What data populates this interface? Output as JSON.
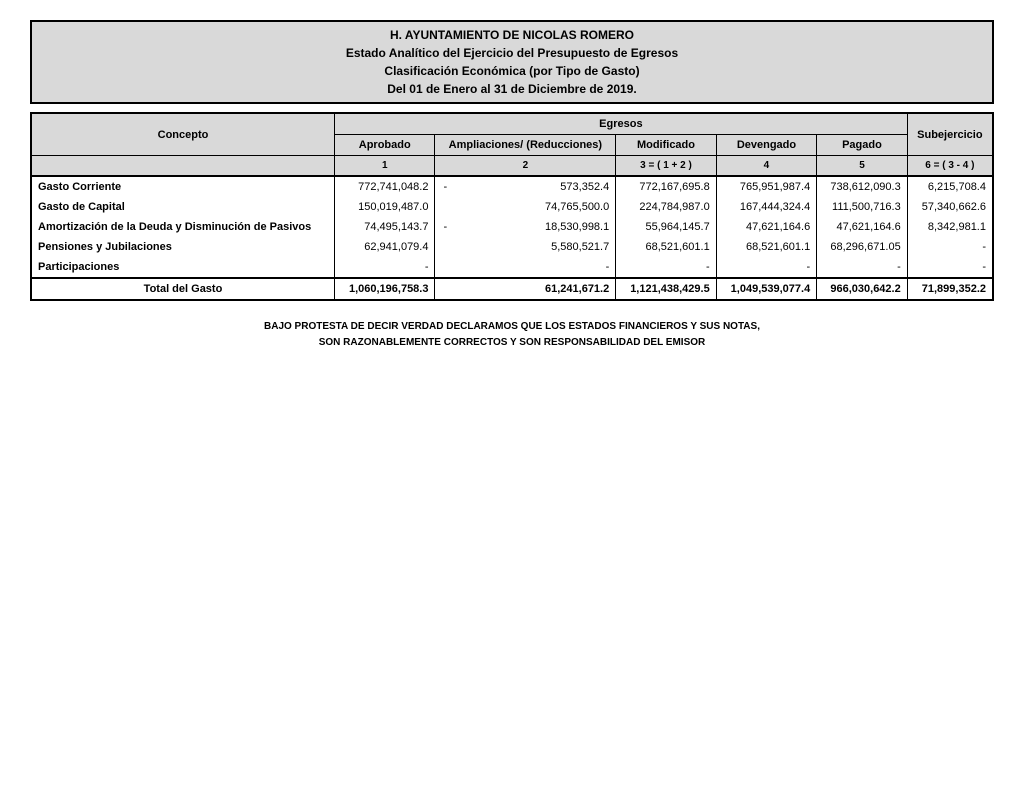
{
  "header": {
    "line1": "H. AYUNTAMIENTO DE NICOLAS ROMERO",
    "line2": "Estado Analítico del Ejercicio del Presupuesto de Egresos",
    "line3": "Clasificación Económica (por Tipo de Gasto)",
    "line4": "Del 01 de Enero al 31 de Diciembre de 2019."
  },
  "columns": {
    "concepto": "Concepto",
    "egresos": "Egresos",
    "aprobado": "Aprobado",
    "ampliaciones": "Ampliaciones/ (Reducciones)",
    "modificado": "Modificado",
    "devengado": "Devengado",
    "pagado": "Pagado",
    "subejercicio": "Subejercicio",
    "f1": "1",
    "f2": "2",
    "f3": "3 = ( 1 + 2 )",
    "f4": "4",
    "f5": "5",
    "f6": "6 = ( 3 - 4 )"
  },
  "rows": [
    {
      "concepto": "Gasto Corriente",
      "aprobado": "772,741,048.2",
      "ampl_neg": true,
      "ampliaciones": "573,352.4",
      "modificado": "772,167,695.8",
      "devengado": "765,951,987.4",
      "pagado": "738,612,090.3",
      "subejercicio": "6,215,708.4"
    },
    {
      "concepto": "Gasto de Capital",
      "aprobado": "150,019,487.0",
      "ampl_neg": false,
      "ampliaciones": "74,765,500.0",
      "modificado": "224,784,987.0",
      "devengado": "167,444,324.4",
      "pagado": "111,500,716.3",
      "subejercicio": "57,340,662.6"
    },
    {
      "concepto": "Amortización de la Deuda y Disminución de Pasivos",
      "aprobado": "74,495,143.7",
      "ampl_neg": true,
      "ampliaciones": "18,530,998.1",
      "modificado": "55,964,145.7",
      "devengado": "47,621,164.6",
      "pagado": "47,621,164.6",
      "subejercicio": "8,342,981.1"
    },
    {
      "concepto": "Pensiones y Jubilaciones",
      "aprobado": "62,941,079.4",
      "ampl_neg": false,
      "ampliaciones": "5,580,521.7",
      "modificado": "68,521,601.1",
      "devengado": "68,521,601.1",
      "pagado": "68,296,671.05",
      "subejercicio": "-"
    },
    {
      "concepto": "Participaciones",
      "aprobado": "-",
      "ampl_neg": false,
      "ampliaciones": "-",
      "modificado": "-",
      "devengado": "-",
      "pagado": "-",
      "subejercicio": "-"
    }
  ],
  "total": {
    "label": "Total del Gasto",
    "aprobado": "1,060,196,758.3",
    "ampliaciones": "61,241,671.2",
    "modificado": "1,121,438,429.5",
    "devengado": "1,049,539,077.4",
    "pagado": "966,030,642.2",
    "subejercicio": "71,899,352.2"
  },
  "footer": {
    "line1": "BAJO PROTESTA DE DECIR VERDAD DECLARAMOS QUE LOS ESTADOS FINANCIEROS Y SUS NOTAS,",
    "line2": "SON RAZONABLEMENTE CORRECTOS Y SON RESPONSABILIDAD DEL EMISOR"
  },
  "style": {
    "header_bg": "#d9d9d9",
    "border_color": "#000000",
    "font_family": "Arial",
    "title_fontsize": 12,
    "body_fontsize": 11,
    "footer_fontsize": 10
  }
}
